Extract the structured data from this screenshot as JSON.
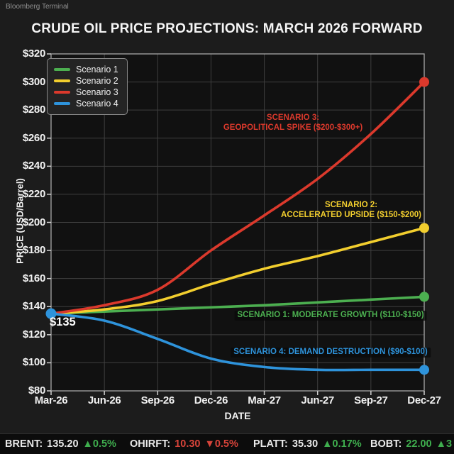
{
  "watermark": "Bloomberg Terminal",
  "title": "CRUDE OIL PRICE PROJECTIONS: MARCH 2026 FORWARD",
  "chart_data": {
    "type": "line",
    "x": [
      "Mar-26",
      "Jun-26",
      "Sep-26",
      "Dec-26",
      "Mar-27",
      "Jun-27",
      "Sep-27",
      "Dec-27"
    ],
    "xlabel": "DATE",
    "ylabel": "PRICE (USD/Barrel)",
    "ylim": [
      80,
      320
    ],
    "ytick_step": 20,
    "ytick_prefix": "$",
    "grid": true,
    "legend_position": "upper-left",
    "start_value": 135,
    "series": [
      {
        "name": "Scenario 1",
        "color": "#4caf50",
        "values": [
          135,
          136.5,
          138,
          139.5,
          141,
          143,
          145,
          147
        ]
      },
      {
        "name": "Scenario 2",
        "color": "#f2ce2e",
        "values": [
          135,
          138,
          144,
          156,
          167,
          176,
          186,
          196
        ]
      },
      {
        "name": "Scenario 3",
        "color": "#db392c",
        "values": [
          135,
          141,
          152,
          180,
          205,
          231,
          263,
          300
        ]
      },
      {
        "name": "Scenario 4",
        "color": "#2e93db",
        "values": [
          135,
          130,
          117,
          103,
          97,
          95,
          95,
          95
        ]
      }
    ],
    "annotations": {
      "start": {
        "text": "$135",
        "color": "#ffffff"
      },
      "s3": {
        "line1": "SCENARIO 3:",
        "line2": "GEOPOLITICAL SPIKE ($200-$300+)",
        "color": "#db392c"
      },
      "s2": {
        "line1": "SCENARIO 2:",
        "line2": "ACCELERATED UPSIDE ($150-$200)",
        "color": "#f2ce2e"
      },
      "s1": {
        "text": "SCENARIO 1: MODERATE GROWTH ($110-$150)",
        "color": "#4caf50"
      },
      "s4": {
        "text": "SCENARIO 4: DEMAND DESTRUCTION ($90-$100)",
        "color": "#2e93db"
      }
    }
  },
  "ticker": {
    "items": [
      {
        "label": "BRENT:",
        "value": "135.20",
        "value_color": "#e9e9e9",
        "change": "▲0.5%",
        "change_color": "#3fae4e"
      },
      {
        "label": "OHIRFT:",
        "value": "10.30",
        "value_color": "#d8443a",
        "change": "▼0.5%",
        "change_color": "#d8443a"
      },
      {
        "label": "PLATT:",
        "value": "35.30",
        "value_color": "#e9e9e9",
        "change": "▲0.17%",
        "change_color": "#3fae4e"
      },
      {
        "label": "BOBT:",
        "value": "22.00",
        "value_color": "#3fae4e",
        "change": "▲3",
        "change_color": "#3fae4e"
      }
    ]
  }
}
